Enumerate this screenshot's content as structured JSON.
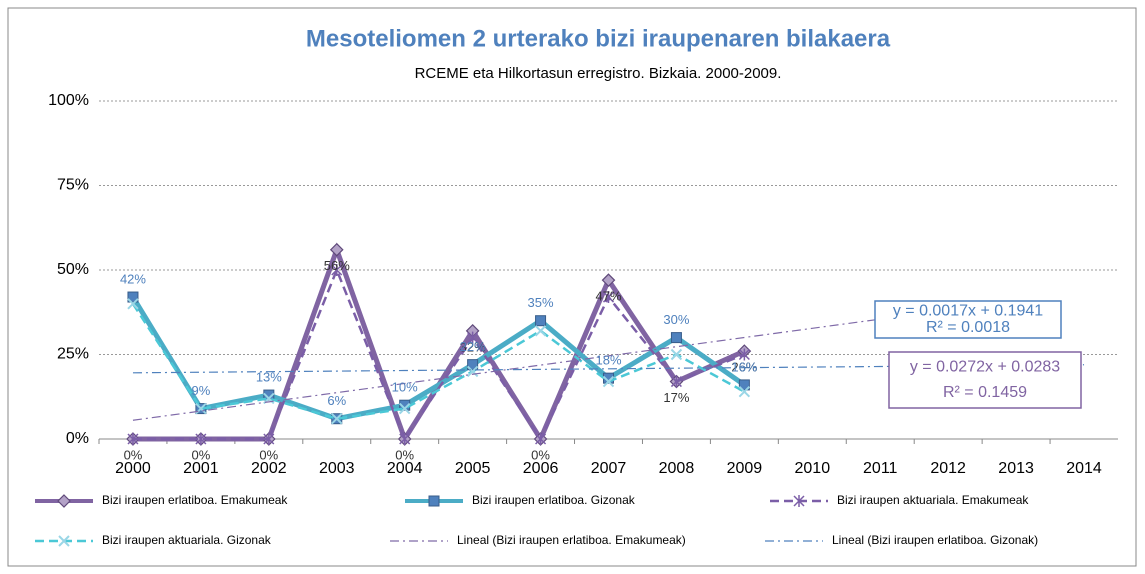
{
  "chart_data": {
    "type": "line",
    "title": "Mesoteliomen 2 urterako bizi iraupenaren bilakaera",
    "subtitle": "RCEME eta Hilkortasun erregistro. Bizkaia. 2000-2009.",
    "categories": [
      "2000",
      "2001",
      "2002",
      "2003",
      "2004",
      "2005",
      "2006",
      "2007",
      "2008",
      "2009",
      "2010",
      "2011",
      "2012",
      "2013",
      "2014"
    ],
    "ylim": [
      0,
      100
    ],
    "yticks": [
      {
        "value": 0,
        "label": "0%"
      },
      {
        "value": 25,
        "label": "25%"
      },
      {
        "value": 50,
        "label": "50%"
      },
      {
        "value": 75,
        "label": "75%"
      },
      {
        "value": 100,
        "label": "100%"
      }
    ],
    "grid": true,
    "legend": "bottom",
    "series": [
      {
        "name": "Bizi iraupen erlatiboa. Emakumeak",
        "color": "#8064a2",
        "width": 5,
        "dash": "solid",
        "marker": "diamond",
        "values": [
          0,
          0,
          0,
          56,
          0,
          32,
          0,
          47,
          17,
          26,
          null,
          null,
          null,
          null,
          null
        ],
        "value_labels": [
          "0%",
          "0%",
          "0%",
          "56%",
          "0%",
          "32%",
          "0%",
          "47%",
          "17%",
          "26%",
          null,
          null,
          null,
          null,
          null
        ],
        "label_color": "#333333",
        "label_side": "below"
      },
      {
        "name": "Bizi iraupen erlatiboa. Gizonak",
        "color": "#4bacc6",
        "width": 5,
        "dash": "solid",
        "marker": "square",
        "values": [
          42,
          9,
          13,
          6,
          10,
          22,
          35,
          18,
          30,
          16,
          null,
          null,
          null,
          null,
          null
        ],
        "value_labels": [
          "42%",
          "9%",
          "13%",
          "6%",
          "10%",
          "22%",
          "35%",
          "18%",
          "30%",
          "16%",
          null,
          null,
          null,
          null,
          null
        ],
        "label_color": "#4f81bd",
        "label_side": "above"
      },
      {
        "name": "Bizi iraupen aktuariala. Emakumeak",
        "color": "#7b5ea7",
        "width": 2.5,
        "dash": "dash",
        "marker": "star",
        "values": [
          0,
          0,
          0,
          50,
          0,
          30,
          0,
          42,
          17,
          25,
          null,
          null,
          null,
          null,
          null
        ]
      },
      {
        "name": "Bizi iraupen aktuariala. Gizonak",
        "color": "#4bc8d6",
        "width": 2.5,
        "dash": "dash",
        "marker": "x",
        "values": [
          40,
          9,
          12,
          6,
          9,
          20,
          32,
          17,
          25,
          14,
          null,
          null,
          null,
          null,
          null
        ]
      },
      {
        "name": "Lineal (Bizi iraupen erlatiboa. Emakumeak)",
        "color": "#7f6aa8",
        "width": 1.2,
        "dash": "dashdot",
        "marker": "none",
        "values": [
          5.55,
          8.27,
          10.99,
          13.71,
          16.43,
          19.15,
          21.87,
          24.59,
          27.31,
          30.03,
          32.75,
          35.47,
          null,
          null,
          null
        ]
      },
      {
        "name": "Lineal (Bizi iraupen erlatiboa. Gizonak)",
        "color": "#4f81bd",
        "width": 1.2,
        "dash": "dashdot",
        "marker": "none",
        "values": [
          19.58,
          19.75,
          19.92,
          20.09,
          20.26,
          20.43,
          20.6,
          20.77,
          20.94,
          21.11,
          21.28,
          21.45,
          21.62,
          21.79,
          21.96
        ]
      }
    ],
    "annotations": [
      {
        "lines": [
          "y = 0.0017x + 0.1941",
          "R² = 0.0018"
        ],
        "color": "#4f81bd"
      },
      {
        "lines": [
          "y = 0.0272x + 0.0283",
          "R² = 0.1459"
        ],
        "color": "#8064a2"
      }
    ]
  }
}
